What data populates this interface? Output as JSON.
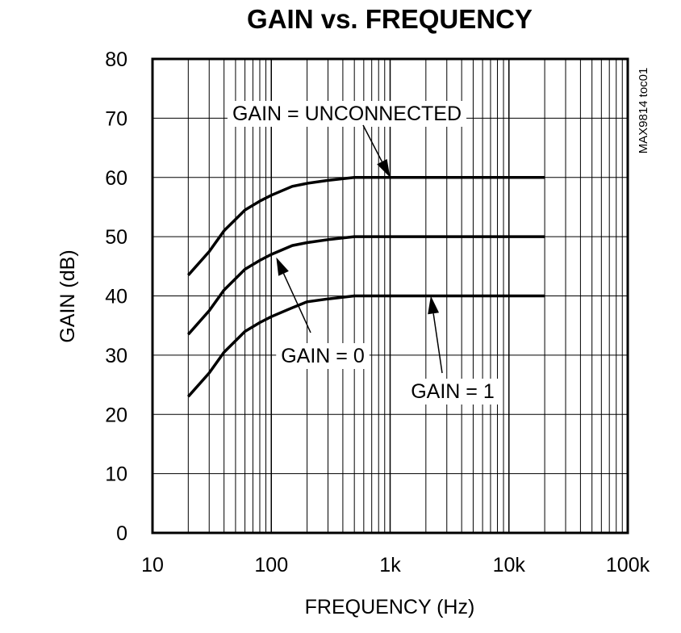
{
  "chart_data": {
    "type": "line",
    "title": "GAIN vs. FREQUENCY",
    "xlabel": "FREQUENCY (Hz)",
    "ylabel": "GAIN (dB)",
    "x_scale": "log",
    "xlim": [
      10,
      100000
    ],
    "ylim": [
      0,
      80
    ],
    "grid": true,
    "x_ticks": [
      10,
      100,
      1000,
      10000,
      100000
    ],
    "x_tick_labels": [
      "10",
      "100",
      "1k",
      "10k",
      "100k"
    ],
    "y_ticks": [
      0,
      10,
      20,
      30,
      40,
      50,
      60,
      70,
      80
    ],
    "y_tick_labels": [
      "0",
      "10",
      "20",
      "30",
      "40",
      "50",
      "60",
      "70",
      "80"
    ],
    "series": [
      {
        "name": "GAIN = UNCONNECTED",
        "x": [
          20,
          30,
          40,
          60,
          80,
          100,
          150,
          200,
          300,
          500,
          1000,
          5000,
          20000
        ],
        "y": [
          43.5,
          47.5,
          51,
          54.5,
          56,
          57,
          58.5,
          59,
          59.5,
          60,
          60,
          60,
          60
        ]
      },
      {
        "name": "GAIN = 0",
        "x": [
          20,
          30,
          40,
          60,
          80,
          100,
          150,
          200,
          300,
          500,
          1000,
          5000,
          20000
        ],
        "y": [
          33.5,
          37.5,
          41,
          44.5,
          46,
          47,
          48.5,
          49,
          49.5,
          50,
          50,
          50,
          50
        ]
      },
      {
        "name": "GAIN = 1",
        "x": [
          20,
          30,
          40,
          60,
          80,
          100,
          150,
          200,
          300,
          500,
          1000,
          5000,
          20000
        ],
        "y": [
          23,
          27,
          30.5,
          34,
          35.5,
          36.5,
          38,
          39,
          39.5,
          40,
          40,
          40,
          40
        ]
      }
    ],
    "annotations": [
      {
        "text": "GAIN = UNCONNECTED",
        "points_to": {
          "x": 1000,
          "y": 60
        }
      },
      {
        "text": "GAIN = 0",
        "points_to": {
          "x": 110,
          "y": 46.5
        }
      },
      {
        "text": "GAIN = 1",
        "points_to": {
          "x": 2200,
          "y": 40
        }
      }
    ],
    "figure_code": "MAX9814 toc01"
  }
}
